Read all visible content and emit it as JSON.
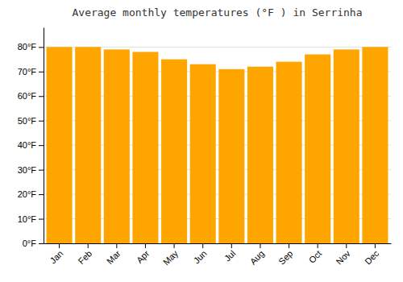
{
  "chart_data": {
    "type": "bar",
    "title": "Average monthly temperatures (°F ) in Serrinha",
    "categories": [
      "Jan",
      "Feb",
      "Mar",
      "Apr",
      "May",
      "Jun",
      "Jul",
      "Aug",
      "Sep",
      "Oct",
      "Nov",
      "Dec"
    ],
    "values": [
      80,
      80,
      79,
      78,
      75,
      73,
      71,
      72,
      74,
      77,
      79,
      80
    ],
    "color": "#FFA500",
    "ylim": [
      0,
      88
    ],
    "yticks": [
      {
        "value": 0,
        "label": "0°F"
      },
      {
        "value": 10,
        "label": "10°F"
      },
      {
        "value": 20,
        "label": "20°F"
      },
      {
        "value": 30,
        "label": "30°F"
      },
      {
        "value": 40,
        "label": "40°F"
      },
      {
        "value": 50,
        "label": "50°F"
      },
      {
        "value": 60,
        "label": "60°F"
      },
      {
        "value": 70,
        "label": "70°F"
      },
      {
        "value": 80,
        "label": "80°F"
      }
    ],
    "grid": true
  }
}
